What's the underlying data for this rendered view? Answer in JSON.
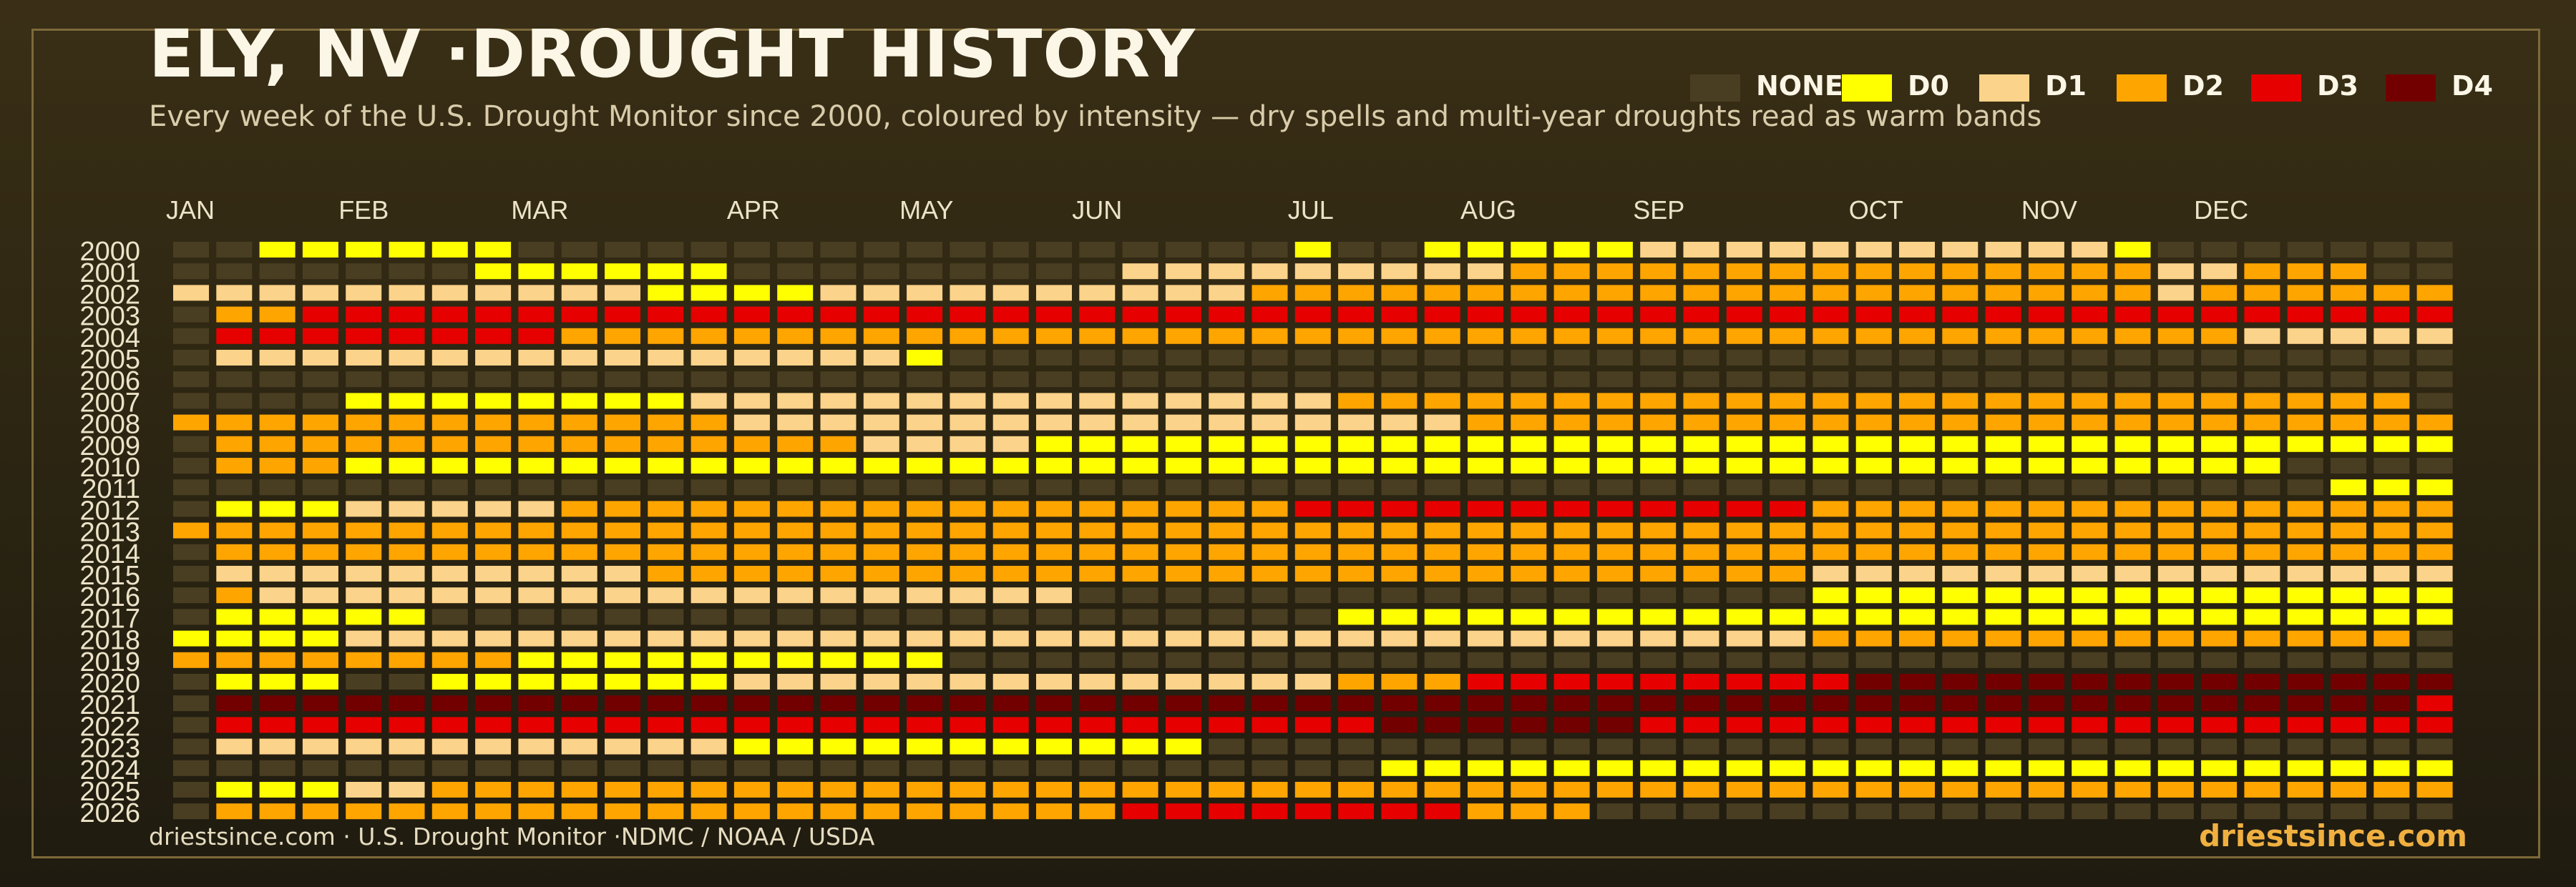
{
  "title": "ELY, NV ·DROUGHT HISTORY",
  "subtitle": "Every week of the U.S. Drought Monitor since 2000, coloured by intensity — dry spells and multi-year droughts read as warm bands",
  "footer": {
    "source": "driestsince.com  · U.S. Drought Monitor ·NDMC / NOAA / USDA",
    "brand": "driestsince.com"
  },
  "colors": {
    "background": "#2d2612",
    "frame": "#7d6a3a",
    "brand": "#f0b040"
  },
  "chart_data": {
    "type": "heatmap",
    "legend": {
      "placement": "top-right",
      "levels": [
        {
          "label": "NONE",
          "color": "#4a3e22"
        },
        {
          "label": "D0",
          "color": "#ffff00"
        },
        {
          "label": "D1",
          "color": "#fcd38a"
        },
        {
          "label": "D2",
          "color": "#ffa500"
        },
        {
          "label": "D3",
          "color": "#e60000"
        },
        {
          "label": "D4",
          "color": "#730000"
        }
      ]
    },
    "months": [
      {
        "label": "JAN",
        "week": 0
      },
      {
        "label": "FEB",
        "week": 4
      },
      {
        "label": "MAR",
        "week": 8
      },
      {
        "label": "APR",
        "week": 13
      },
      {
        "label": "MAY",
        "week": 17
      },
      {
        "label": "JUN",
        "week": 21
      },
      {
        "label": "JUL",
        "week": 26
      },
      {
        "label": "AUG",
        "week": 30
      },
      {
        "label": "SEP",
        "week": 34
      },
      {
        "label": "OCT",
        "week": 39
      },
      {
        "label": "NOV",
        "week": 43
      },
      {
        "label": "DEC",
        "week": 47
      }
    ],
    "weeks_per_year": 53,
    "years": [
      {
        "year": "2000",
        "runs": [
          [
            0,
            2,
            0
          ],
          [
            2,
            8,
            1
          ],
          [
            8,
            26,
            0
          ],
          [
            26,
            27,
            1
          ],
          [
            27,
            29,
            0
          ],
          [
            29,
            34,
            1
          ],
          [
            34,
            37,
            2
          ],
          [
            37,
            45,
            2
          ],
          [
            45,
            46,
            1
          ],
          [
            46,
            53,
            0
          ]
        ]
      },
      {
        "year": "2001",
        "runs": [
          [
            0,
            7,
            0
          ],
          [
            7,
            13,
            1
          ],
          [
            13,
            22,
            0
          ],
          [
            22,
            26,
            2
          ],
          [
            26,
            28,
            2
          ],
          [
            28,
            31,
            2
          ],
          [
            31,
            33,
            3
          ],
          [
            33,
            46,
            3
          ],
          [
            46,
            48,
            2
          ],
          [
            48,
            51,
            3
          ],
          [
            51,
            53,
            0
          ]
        ]
      },
      {
        "year": "2002",
        "runs": [
          [
            0,
            1,
            2
          ],
          [
            1,
            7,
            2
          ],
          [
            7,
            11,
            2
          ],
          [
            11,
            13,
            1
          ],
          [
            13,
            15,
            1
          ],
          [
            15,
            25,
            2
          ],
          [
            25,
            28,
            3
          ],
          [
            28,
            46,
            3
          ],
          [
            46,
            47,
            2
          ],
          [
            47,
            53,
            3
          ]
        ]
      },
      {
        "year": "2003",
        "runs": [
          [
            0,
            1,
            0
          ],
          [
            1,
            3,
            3
          ],
          [
            3,
            53,
            4
          ]
        ]
      },
      {
        "year": "2004",
        "runs": [
          [
            0,
            1,
            0
          ],
          [
            1,
            9,
            4
          ],
          [
            9,
            48,
            3
          ],
          [
            48,
            53,
            2
          ]
        ]
      },
      {
        "year": "2005",
        "runs": [
          [
            0,
            1,
            0
          ],
          [
            1,
            17,
            2
          ],
          [
            17,
            18,
            1
          ],
          [
            18,
            53,
            0
          ]
        ]
      },
      {
        "year": "2006",
        "runs": [
          [
            0,
            53,
            0
          ]
        ]
      },
      {
        "year": "2007",
        "runs": [
          [
            0,
            4,
            0
          ],
          [
            4,
            12,
            1
          ],
          [
            12,
            27,
            2
          ],
          [
            27,
            52,
            3
          ],
          [
            52,
            53,
            0
          ]
        ]
      },
      {
        "year": "2008",
        "runs": [
          [
            0,
            1,
            3
          ],
          [
            1,
            13,
            3
          ],
          [
            13,
            15,
            2
          ],
          [
            15,
            19,
            2
          ],
          [
            19,
            30,
            2
          ],
          [
            30,
            53,
            3
          ]
        ]
      },
      {
        "year": "2009",
        "runs": [
          [
            0,
            1,
            0
          ],
          [
            1,
            16,
            3
          ],
          [
            16,
            19,
            2
          ],
          [
            19,
            20,
            2
          ],
          [
            20,
            53,
            1
          ]
        ]
      },
      {
        "year": "2010",
        "runs": [
          [
            0,
            1,
            0
          ],
          [
            1,
            4,
            3
          ],
          [
            4,
            49,
            1
          ],
          [
            49,
            53,
            0
          ]
        ]
      },
      {
        "year": "2011",
        "runs": [
          [
            0,
            50,
            0
          ],
          [
            50,
            53,
            1
          ]
        ]
      },
      {
        "year": "2012",
        "runs": [
          [
            0,
            1,
            0
          ],
          [
            1,
            4,
            1
          ],
          [
            4,
            9,
            2
          ],
          [
            9,
            26,
            3
          ],
          [
            26,
            38,
            4
          ],
          [
            38,
            53,
            3
          ]
        ]
      },
      {
        "year": "2013",
        "runs": [
          [
            0,
            1,
            3
          ],
          [
            1,
            53,
            3
          ]
        ]
      },
      {
        "year": "2014",
        "runs": [
          [
            0,
            1,
            0
          ],
          [
            1,
            53,
            3
          ]
        ]
      },
      {
        "year": "2015",
        "runs": [
          [
            0,
            1,
            0
          ],
          [
            1,
            11,
            2
          ],
          [
            11,
            27,
            3
          ],
          [
            27,
            38,
            3
          ],
          [
            38,
            53,
            2
          ]
        ]
      },
      {
        "year": "2016",
        "runs": [
          [
            0,
            1,
            0
          ],
          [
            1,
            2,
            3
          ],
          [
            2,
            21,
            2
          ],
          [
            21,
            27,
            0
          ],
          [
            27,
            38,
            0
          ],
          [
            38,
            53,
            1
          ]
        ]
      },
      {
        "year": "2017",
        "runs": [
          [
            0,
            1,
            0
          ],
          [
            1,
            6,
            1
          ],
          [
            6,
            27,
            0
          ],
          [
            27,
            53,
            1
          ]
        ]
      },
      {
        "year": "2018",
        "runs": [
          [
            0,
            1,
            1
          ],
          [
            1,
            4,
            1
          ],
          [
            4,
            38,
            2
          ],
          [
            38,
            46,
            3
          ],
          [
            46,
            52,
            3
          ],
          [
            52,
            53,
            0
          ]
        ]
      },
      {
        "year": "2019",
        "runs": [
          [
            0,
            1,
            3
          ],
          [
            1,
            4,
            3
          ],
          [
            4,
            8,
            3
          ],
          [
            8,
            13,
            1
          ],
          [
            13,
            15,
            1
          ],
          [
            15,
            18,
            1
          ],
          [
            18,
            53,
            0
          ]
        ]
      },
      {
        "year": "2020",
        "runs": [
          [
            0,
            1,
            0
          ],
          [
            1,
            4,
            1
          ],
          [
            4,
            6,
            0
          ],
          [
            6,
            13,
            1
          ],
          [
            13,
            27,
            2
          ],
          [
            27,
            30,
            3
          ],
          [
            30,
            39,
            4
          ],
          [
            39,
            53,
            5
          ]
        ]
      },
      {
        "year": "2021",
        "runs": [
          [
            0,
            1,
            0
          ],
          [
            1,
            52,
            5
          ],
          [
            52,
            53,
            4
          ]
        ]
      },
      {
        "year": "2022",
        "runs": [
          [
            0,
            1,
            0
          ],
          [
            1,
            28,
            4
          ],
          [
            28,
            34,
            5
          ],
          [
            34,
            53,
            4
          ]
        ]
      },
      {
        "year": "2023",
        "runs": [
          [
            0,
            1,
            0
          ],
          [
            1,
            13,
            2
          ],
          [
            13,
            14,
            1
          ],
          [
            14,
            17,
            1
          ],
          [
            17,
            24,
            1
          ],
          [
            24,
            53,
            0
          ]
        ]
      },
      {
        "year": "2024",
        "runs": [
          [
            0,
            28,
            0
          ],
          [
            28,
            53,
            1
          ]
        ]
      },
      {
        "year": "2025",
        "runs": [
          [
            0,
            1,
            0
          ],
          [
            1,
            4,
            1
          ],
          [
            4,
            6,
            2
          ],
          [
            6,
            53,
            3
          ]
        ]
      },
      {
        "year": "2026",
        "runs": [
          [
            0,
            1,
            0
          ],
          [
            1,
            22,
            3
          ],
          [
            22,
            30,
            4
          ],
          [
            30,
            33,
            3
          ],
          [
            33,
            53,
            0
          ]
        ]
      }
    ]
  }
}
